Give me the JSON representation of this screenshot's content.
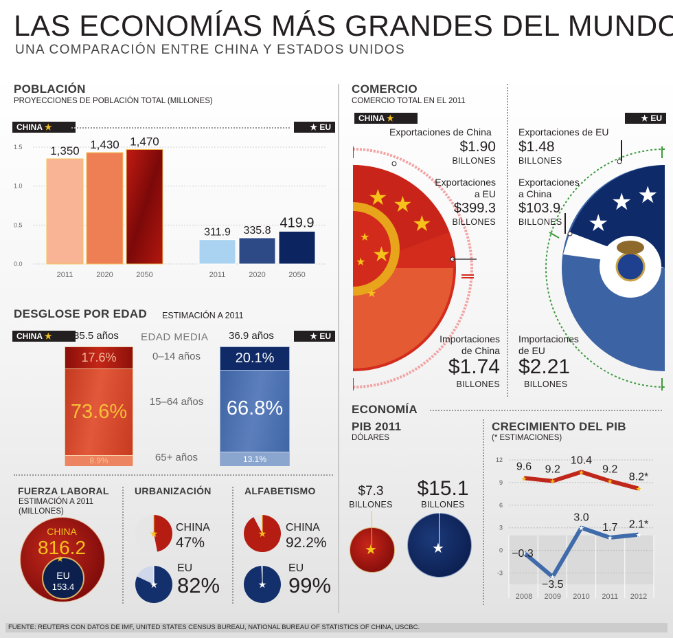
{
  "title": "LAS ECONOMÍAS MÁS GRANDES DEL MUNDO",
  "subtitle": "UNA COMPARACIÓN ENTRE CHINA Y ESTADOS UNIDOS",
  "poblacion": {
    "heading": "POBLACIÓN",
    "subheading": "PROYECCIONES DE POBLACIÓN TOTAL (MILLONES)",
    "china_tag": "CHINA",
    "us_tag": "EU"
  },
  "desglose": {
    "heading": "DESGLOSE POR EDAD",
    "subheading": "ESTIMACIÓN A 2011",
    "china_tag": "CHINA",
    "us_tag": "EU",
    "median_label": "EDAD MEDIA",
    "china_median": "35.5 años",
    "us_median": "36.9 años",
    "groups": [
      "0–14 años",
      "15–64 años",
      "65+ años"
    ],
    "china_values": [
      "17.6%",
      "73.6%",
      "8.9%"
    ],
    "us_values": [
      "20.1%",
      "66.8%",
      "13.1%"
    ]
  },
  "fuerza": {
    "heading": "FUERZA LABORAL",
    "sub1": "ESTIMACIÓN A 2011",
    "sub2": "(MILLONES)",
    "china_label": "CHINA",
    "china_value": "816.2",
    "us_label": "EU",
    "us_value": "153.4"
  },
  "urbanizacion": {
    "heading": "URBANIZACIÓN",
    "china_label": "CHINA",
    "china_value": "47%",
    "us_label": "EU",
    "us_value": "82%",
    "china_fraction": 0.47,
    "us_fraction": 0.82
  },
  "alfabetismo": {
    "heading": "ALFABETISMO",
    "china_label": "CHINA",
    "china_value": "92.2%",
    "us_label": "EU",
    "us_value": "99%",
    "china_fraction": 0.922,
    "us_fraction": 0.99
  },
  "comercio": {
    "heading": "COMERCIO",
    "subheading": "COMERCIO TOTAL EN EL 2011",
    "china_tag": "CHINA",
    "us_tag": "EU",
    "china_exports_label": "Exportaciones de China",
    "china_exports_value": "$1.90",
    "china_exports_unit": "BILLONES",
    "china_to_us_label1": "Exportaciones",
    "china_to_us_label2": "a EU",
    "china_to_us_value": "$399.3",
    "china_to_us_unit": "BILLONES",
    "china_imports_label1": "Importaciones",
    "china_imports_label2": "de China",
    "china_imports_value": "$1.74",
    "china_imports_unit": "BILLONES",
    "us_exports_label": "Exportaciones de EU",
    "us_exports_value": "$1.48",
    "us_exports_unit": "BILLONES",
    "us_to_china_label1": "Exportaciones",
    "us_to_china_label2": "a China",
    "us_to_china_value": "$103.9",
    "us_to_china_unit": "BILLONES",
    "us_imports_label1": "Importaciones",
    "us_imports_label2": "de EU",
    "us_imports_value": "$2.21",
    "us_imports_unit": "BILLONES"
  },
  "economia": {
    "heading": "ECONOMÍA",
    "pib_heading": "PIB 2011",
    "pib_sub": "DÓLARES",
    "china_pib": "$7.3",
    "china_pib_unit": "BILLONES",
    "us_pib": "$15.1",
    "us_pib_unit": "BILLONES",
    "crec_heading": "CRECIMIENTO DEL PIB",
    "crec_sub": "(* ESTIMACIONES)"
  },
  "source": "FUENTE: REUTERS CON DATOS DE IMF, UNITED STATES CENSUS BUREAU, NATIONAL BUREAU OF STATISTICS OF CHINA, USCBC.",
  "colors": {
    "china_red": "#c0271b",
    "china_dark": "#7d0a0a",
    "china_light": "#f8b494",
    "china_mid": "#ee7f55",
    "us_light": "#a9d3f0",
    "us_mid": "#2e4a86",
    "us_dark": "#0c2460",
    "us_blue": "#3f6bab",
    "gold": "#f6c11b"
  },
  "chart_data": [
    {
      "type": "bar",
      "title": "POBLACIÓN",
      "categories": [
        "2011",
        "2020",
        "2050"
      ],
      "y_ticks": [
        "0.0",
        "0.5",
        "1.0",
        "1.5"
      ],
      "ylim": [
        0,
        1500
      ],
      "series": [
        {
          "name": "CHINA",
          "values": [
            1350,
            1430,
            1470
          ],
          "labels": [
            "1,350",
            "1,430",
            "1,470"
          ]
        },
        {
          "name": "EU",
          "values": [
            311.9,
            335.8,
            419.9
          ],
          "labels": [
            "311.9",
            "335.8",
            "419.9"
          ]
        }
      ]
    },
    {
      "type": "line",
      "title": "CRECIMIENTO DEL PIB",
      "x": [
        "2008",
        "2009",
        "2010",
        "2011",
        "2012"
      ],
      "y_ticks": [
        "12",
        "9",
        "6",
        "3",
        "0",
        "-3"
      ],
      "ylim": [
        -4.5,
        13
      ],
      "series": [
        {
          "name": "CHINA",
          "values": [
            9.6,
            9.2,
            10.4,
            9.2,
            8.2
          ],
          "labels": [
            "9.6",
            "9.2",
            "10.4",
            "9.2",
            "8.2*"
          ]
        },
        {
          "name": "EU",
          "values": [
            -0.3,
            -3.5,
            3.0,
            1.7,
            2.1
          ],
          "labels": [
            "−0.3",
            "−3.5",
            "3.0",
            "1.7",
            "2.1*"
          ]
        }
      ]
    }
  ]
}
